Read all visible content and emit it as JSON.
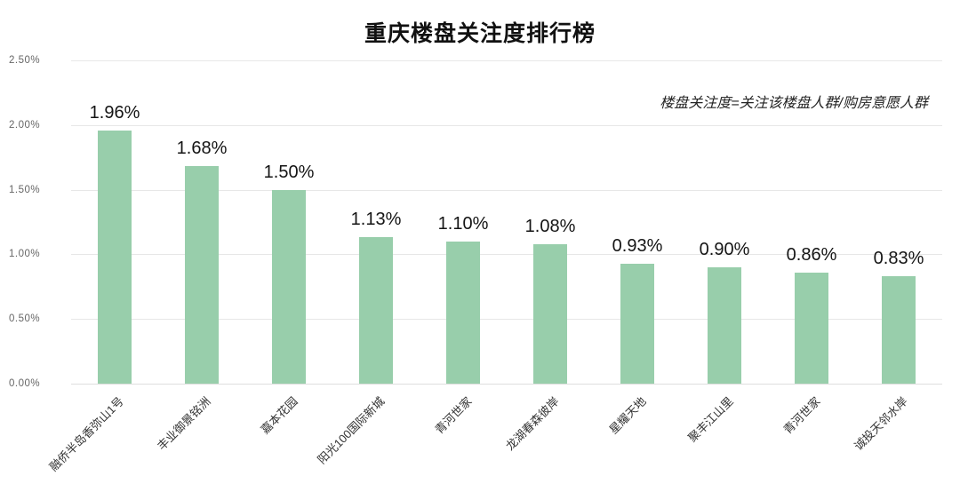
{
  "chart_data": {
    "type": "bar",
    "title": "重庆楼盘关注度排行榜",
    "annotation": "楼盘关注度=关注该楼盘人群/购房意愿人群",
    "categories": [
      "融侨半岛香弥山1号",
      "丰业御景铭洲",
      "嘉本花园",
      "阳光100国际新城",
      "青河世家",
      "龙湖春森彼岸",
      "星耀天地",
      "聚丰江山里",
      "青河世家",
      "诚投天邻水岸"
    ],
    "values": [
      1.96,
      1.68,
      1.5,
      1.13,
      1.1,
      1.08,
      0.93,
      0.9,
      0.86,
      0.83
    ],
    "value_labels": [
      "1.96%",
      "1.68%",
      "1.50%",
      "1.13%",
      "1.10%",
      "1.08%",
      "0.93%",
      "0.90%",
      "0.86%",
      "0.83%"
    ],
    "y_ticks": [
      "0.00%",
      "0.50%",
      "1.00%",
      "1.50%",
      "2.00%",
      "2.50%"
    ],
    "ylim": [
      0,
      2.5
    ],
    "xlabel": "",
    "ylabel": "",
    "grid": true,
    "legend": false,
    "bar_color": "#98ceab",
    "background_color": "#ffffff"
  }
}
